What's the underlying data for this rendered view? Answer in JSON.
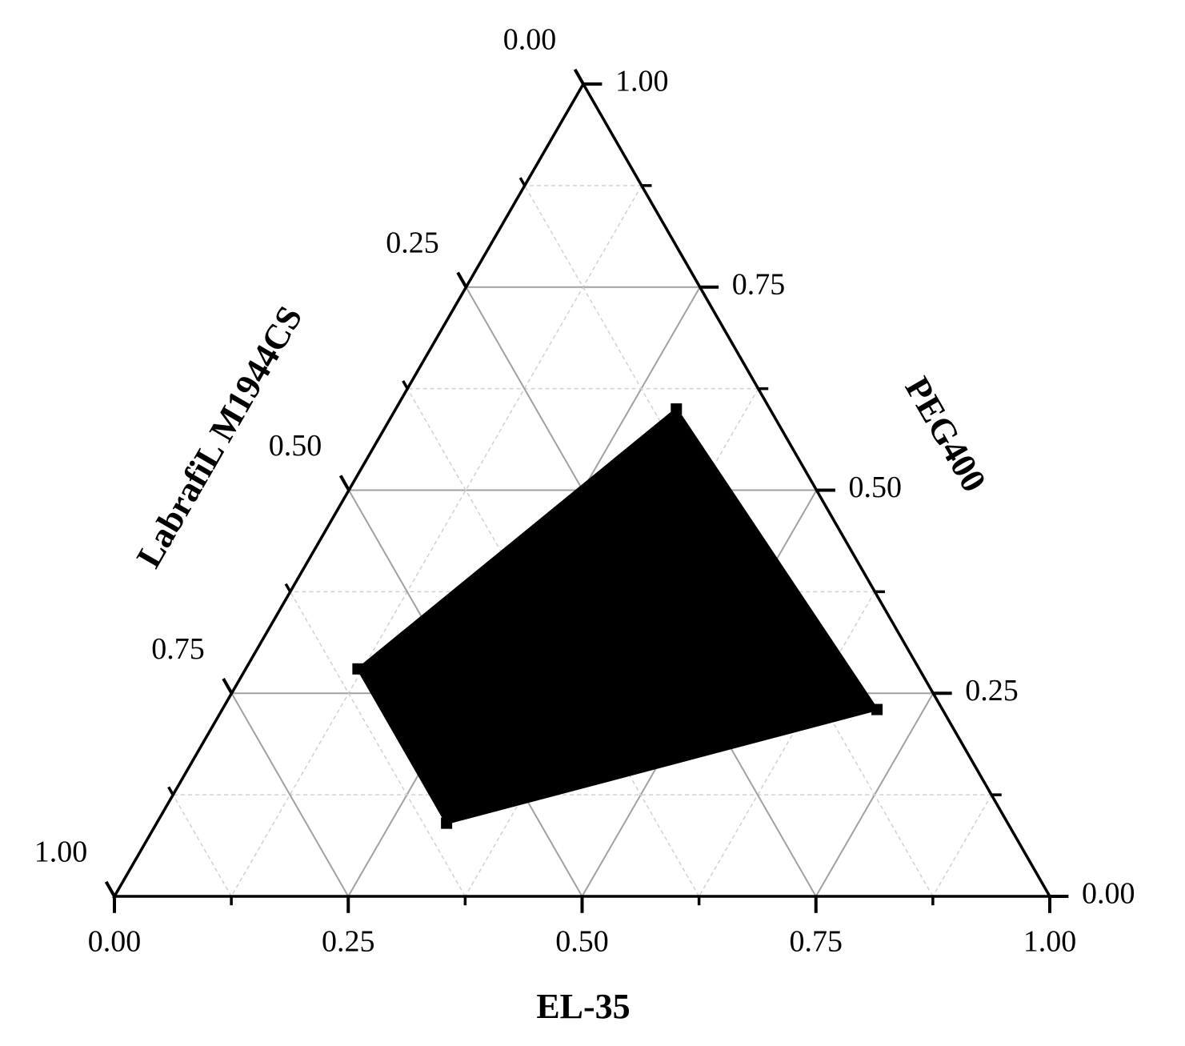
{
  "chart_data": {
    "type": "ternary",
    "axes": {
      "a": {
        "label": "EL-35",
        "ticks": [
          {
            "value": 0,
            "label": "0.00"
          },
          {
            "value": 0.25,
            "label": "0.25"
          },
          {
            "value": 0.5,
            "label": "0.50"
          },
          {
            "value": 0.75,
            "label": "0.75"
          },
          {
            "value": 1,
            "label": "1.00"
          }
        ],
        "minor_ticks": [
          0.125,
          0.375,
          0.625,
          0.875
        ]
      },
      "b": {
        "label": "PEG400",
        "ticks": [
          {
            "value": 0,
            "label": "0.00"
          },
          {
            "value": 0.25,
            "label": "0.25"
          },
          {
            "value": 0.5,
            "label": "0.50"
          },
          {
            "value": 0.75,
            "label": "0.75"
          },
          {
            "value": 1,
            "label": "1.00"
          }
        ],
        "minor_ticks": [
          0.125,
          0.375,
          0.625,
          0.875
        ]
      },
      "c": {
        "label": "LabrafiL M1944CS",
        "ticks": [
          {
            "value": 0,
            "label": "0.00"
          },
          {
            "value": 0.25,
            "label": "0.25"
          },
          {
            "value": 0.5,
            "label": "0.50"
          },
          {
            "value": 0.75,
            "label": "0.75"
          },
          {
            "value": 1,
            "label": "1.00"
          }
        ],
        "minor_ticks": [
          0.125,
          0.375,
          0.625,
          0.875
        ]
      }
    },
    "grid": true,
    "series": [
      {
        "color": "#000000",
        "a": [
          0.3,
          0.7,
          0.31,
          0.12
        ],
        "b": [
          0.6,
          0.23,
          0.09,
          0.28
        ],
        "c": [
          0.1,
          0.07,
          0.6,
          0.6
        ]
      }
    ]
  }
}
